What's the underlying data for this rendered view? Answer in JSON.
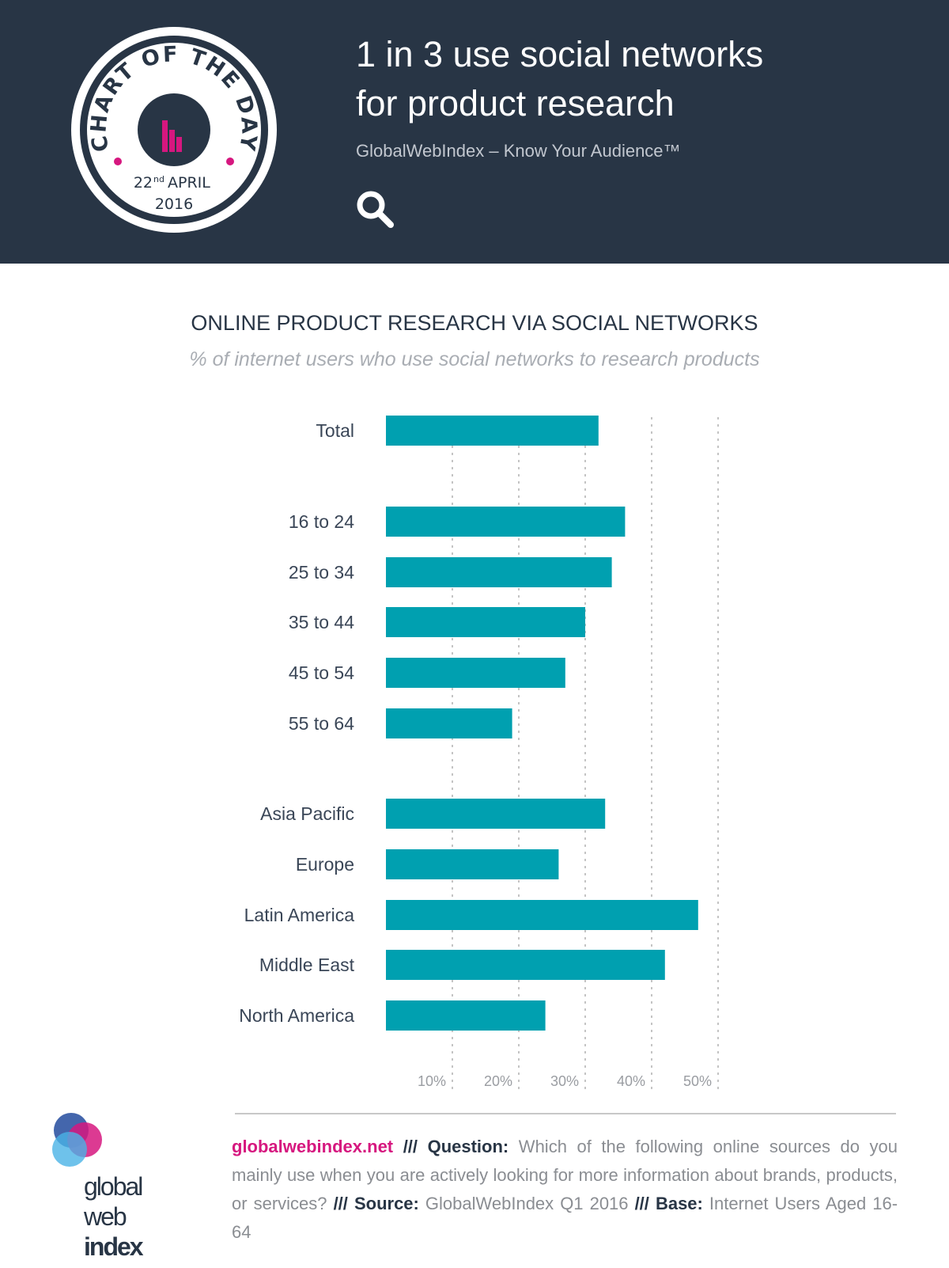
{
  "header": {
    "title_line1": "1 in 3 use social networks",
    "title_line2": "for product research",
    "subtitle": "GlobalWebIndex – Know Your Audience™",
    "badge_text": "CHART OF THE DAY",
    "badge_date": "22nd APRIL",
    "badge_day": "22",
    "badge_suffix": "nd",
    "badge_month": "APRIL",
    "badge_year": "2016",
    "search_icon": "search-icon"
  },
  "colors": {
    "header_bg": "#283545",
    "bar": "#00a0b0",
    "accent": "#d6177f"
  },
  "chart_data": {
    "type": "bar",
    "orientation": "horizontal",
    "title": "ONLINE PRODUCT RESEARCH VIA SOCIAL NETWORKS",
    "subtitle": "% of internet users who use social networks to research products",
    "categories": [
      "Total",
      "16 to 24",
      "25 to 34",
      "35 to 44",
      "45 to 54",
      "55 to 64",
      "Asia Pacific",
      "Europe",
      "Latin America",
      "Middle East",
      "North America"
    ],
    "groups": [
      [
        "Total"
      ],
      [
        "16 to 24",
        "25 to 34",
        "35 to 44",
        "45 to 54",
        "55 to 64"
      ],
      [
        "Asia Pacific",
        "Europe",
        "Latin America",
        "Middle East",
        "North America"
      ]
    ],
    "values": [
      32,
      36,
      34,
      30,
      27,
      19,
      33,
      26,
      47,
      42,
      24
    ],
    "xlim": [
      0,
      50
    ],
    "ticks": [
      "10%",
      "20%",
      "30%",
      "40%",
      "50%"
    ],
    "tick_values": [
      10,
      20,
      30,
      40,
      50
    ],
    "grid": true
  },
  "footer": {
    "site": "globalwebindex.net",
    "sep": " /// ",
    "q_label": "Question:",
    "question": " Which of the following online sources do you mainly use when you are actively looking for more information about brands, products, or services?",
    "s_label": "Source:",
    "source": "  GlobalWebIndex Q1 2016",
    "b_label": "Base:",
    "base": " Internet Users Aged 16-64",
    "logo_text": "global web index"
  }
}
